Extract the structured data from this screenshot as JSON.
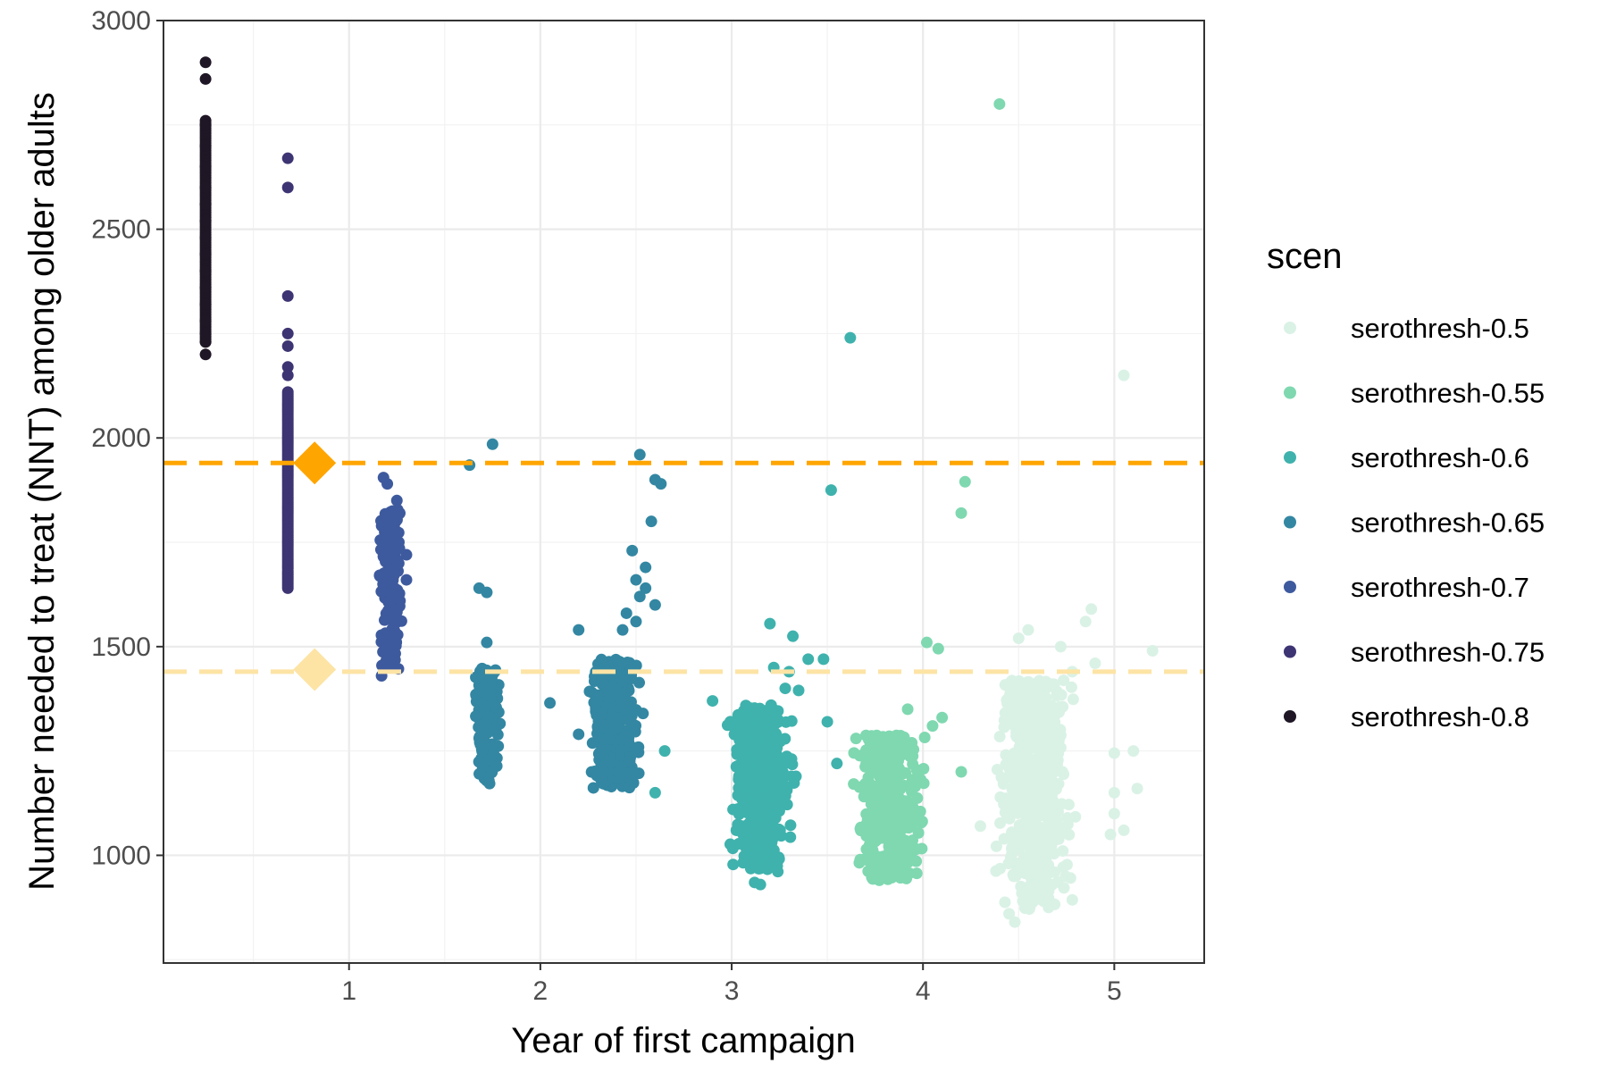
{
  "chart_data": {
    "type": "scatter",
    "title": "",
    "xlabel": "Year of first campaign",
    "ylabel": "Number needed to treat (NNT) among older adults",
    "xlim": [
      0.03,
      5.47
    ],
    "ylim": [
      742,
      3000
    ],
    "x_ticks": [
      1,
      2,
      3,
      4,
      5
    ],
    "x_tick_labels": [
      "1",
      "2",
      "3",
      "4",
      "5"
    ],
    "y_ticks": [
      1000,
      1500,
      2000,
      2500,
      3000
    ],
    "y_tick_labels": [
      "1000",
      "1500",
      "2000",
      "2500",
      "3000"
    ],
    "grid": true,
    "legend": {
      "title": "scen",
      "position": "right",
      "entries": [
        {
          "label": "serothresh-0.5",
          "color": "#daf2e6"
        },
        {
          "label": "serothresh-0.55",
          "color": "#7fd8b0"
        },
        {
          "label": "serothresh-0.6",
          "color": "#3fb2ad"
        },
        {
          "label": "serothresh-0.65",
          "color": "#3387a2"
        },
        {
          "label": "serothresh-0.7",
          "color": "#3e5a9e"
        },
        {
          "label": "serothresh-0.75",
          "color": "#3d3473"
        },
        {
          "label": "serothresh-0.8",
          "color": "#1f1725"
        }
      ]
    },
    "reference_lines": [
      {
        "y": 1940,
        "color": "#ffa500",
        "style": "dashed"
      },
      {
        "y": 1440,
        "color": "#fde4a5",
        "style": "dashed"
      }
    ],
    "reference_markers": [
      {
        "x": 0.82,
        "y": 1940,
        "color": "#ffa500",
        "shape": "diamond"
      },
      {
        "x": 0.82,
        "y": 1445,
        "color": "#fde4a5",
        "shape": "diamond"
      }
    ],
    "series": [
      {
        "name": "serothresh-0.8",
        "color": "#1f1725",
        "x_center": 0.25,
        "x_spread": 0.0,
        "points": [
          [
            0.25,
            2900
          ],
          [
            0.25,
            2860
          ],
          [
            0.25,
            2750
          ],
          [
            0.25,
            2700
          ],
          [
            0.25,
            2650
          ],
          [
            0.25,
            2600
          ],
          [
            0.25,
            2560
          ],
          [
            0.25,
            2520
          ],
          [
            0.25,
            2480
          ],
          [
            0.25,
            2440
          ],
          [
            0.25,
            2400
          ],
          [
            0.25,
            2360
          ],
          [
            0.25,
            2320
          ],
          [
            0.25,
            2280
          ],
          [
            0.25,
            2250
          ],
          [
            0.25,
            2230
          ],
          [
            0.25,
            2200
          ]
        ],
        "dense": [
          {
            "y_min": 2230,
            "y_max": 2760,
            "n": 90
          }
        ]
      },
      {
        "name": "serothresh-0.75",
        "color": "#3d3473",
        "points": [
          [
            0.68,
            2670
          ],
          [
            0.68,
            2600
          ],
          [
            0.68,
            2340
          ],
          [
            0.68,
            2250
          ],
          [
            0.68,
            2220
          ],
          [
            0.68,
            2170
          ],
          [
            0.68,
            2150
          ]
        ],
        "dense": [
          {
            "x": 0.68,
            "x_spread": 0.0,
            "y_min": 1640,
            "y_max": 2110,
            "n": 90
          }
        ]
      },
      {
        "name": "serothresh-0.7",
        "color": "#3e5a9e",
        "points": [
          [
            1.18,
            1905
          ],
          [
            1.2,
            1890
          ],
          [
            1.25,
            1850
          ],
          [
            1.3,
            1720
          ],
          [
            1.17,
            1430
          ],
          [
            1.3,
            1660
          ]
        ],
        "dense": [
          {
            "x": 1.22,
            "x_spread": 0.07,
            "y_min": 1440,
            "y_max": 1830,
            "n": 220
          }
        ]
      },
      {
        "name": "serothresh-0.65",
        "color": "#3387a2",
        "points": [
          [
            1.63,
            1935
          ],
          [
            1.75,
            1985
          ],
          [
            2.52,
            1960
          ],
          [
            2.6,
            1900
          ],
          [
            2.63,
            1890
          ],
          [
            2.58,
            1800
          ],
          [
            2.48,
            1730
          ],
          [
            2.55,
            1690
          ],
          [
            2.5,
            1660
          ],
          [
            2.55,
            1640
          ],
          [
            2.52,
            1620
          ],
          [
            2.6,
            1600
          ],
          [
            2.45,
            1580
          ],
          [
            2.5,
            1560
          ],
          [
            2.43,
            1540
          ],
          [
            2.2,
            1540
          ],
          [
            2.05,
            1365
          ],
          [
            2.2,
            1290
          ],
          [
            1.68,
            1640
          ],
          [
            1.72,
            1630
          ],
          [
            1.72,
            1510
          ]
        ],
        "dense": [
          {
            "x": 1.72,
            "x_spread": 0.08,
            "y_min": 1170,
            "y_max": 1450,
            "n": 180
          },
          {
            "x": 2.38,
            "x_spread": 0.18,
            "y_min": 1160,
            "y_max": 1470,
            "n": 320
          }
        ]
      },
      {
        "name": "serothresh-0.6",
        "color": "#3fb2ad",
        "points": [
          [
            3.62,
            2240
          ],
          [
            3.52,
            1875
          ],
          [
            3.2,
            1555
          ],
          [
            3.32,
            1525
          ],
          [
            3.48,
            1470
          ],
          [
            3.4,
            1470
          ],
          [
            3.22,
            1450
          ],
          [
            3.3,
            1440
          ],
          [
            2.9,
            1370
          ],
          [
            3.28,
            1400
          ],
          [
            3.35,
            1395
          ],
          [
            3.5,
            1320
          ],
          [
            2.65,
            1250
          ],
          [
            2.6,
            1150
          ],
          [
            3.15,
            930
          ],
          [
            3.12,
            935
          ],
          [
            3.55,
            1220
          ]
        ],
        "dense": [
          {
            "x": 3.15,
            "x_spread": 0.22,
            "y_min": 960,
            "y_max": 1360,
            "n": 420
          }
        ]
      },
      {
        "name": "serothresh-0.55",
        "color": "#7fd8b0",
        "points": [
          [
            4.4,
            2800
          ],
          [
            4.22,
            1895
          ],
          [
            4.2,
            1820
          ],
          [
            4.02,
            1510
          ],
          [
            4.08,
            1495
          ],
          [
            3.92,
            1350
          ],
          [
            4.1,
            1330
          ],
          [
            4.05,
            1310
          ],
          [
            3.65,
            1280
          ],
          [
            4.2,
            1200
          ]
        ],
        "dense": [
          {
            "x": 3.83,
            "x_spread": 0.22,
            "y_min": 940,
            "y_max": 1290,
            "n": 380
          }
        ]
      },
      {
        "name": "serothresh-0.5",
        "color": "#daf2e6",
        "points": [
          [
            5.05,
            2150
          ],
          [
            4.88,
            1590
          ],
          [
            4.85,
            1560
          ],
          [
            4.55,
            1540
          ],
          [
            4.72,
            1500
          ],
          [
            5.2,
            1490
          ],
          [
            4.9,
            1460
          ],
          [
            4.78,
            1440
          ],
          [
            4.5,
            1520
          ],
          [
            5.1,
            1250
          ],
          [
            5.0,
            1245
          ],
          [
            5.12,
            1160
          ],
          [
            5.0,
            1150
          ],
          [
            5.05,
            1060
          ],
          [
            4.98,
            1050
          ],
          [
            5.0,
            1100
          ],
          [
            4.3,
            1070
          ],
          [
            4.48,
            840
          ],
          [
            4.45,
            860
          ]
        ],
        "dense": [
          {
            "x": 4.58,
            "x_spread": 0.25,
            "y_min": 870,
            "y_max": 1420,
            "n": 520
          }
        ]
      }
    ]
  }
}
